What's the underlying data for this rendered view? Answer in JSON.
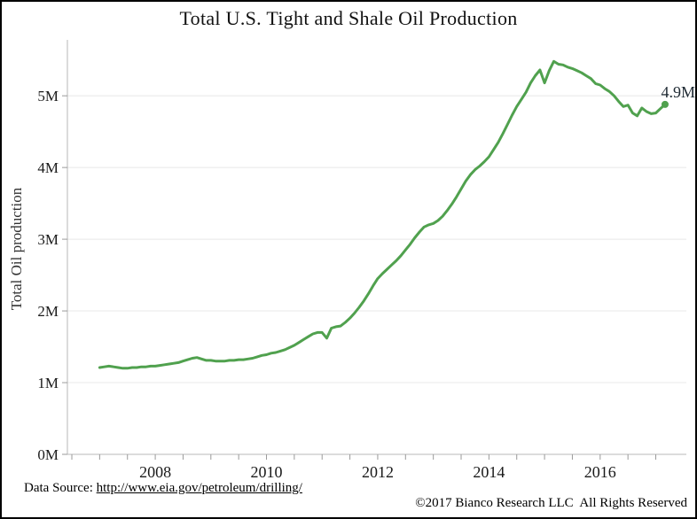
{
  "title": "Total U.S. Tight and Shale Oil Production",
  "chart_data": {
    "type": "line",
    "title": "Total U.S. Tight and Shale Oil Production",
    "xlabel": "",
    "ylabel": "Total Oil production",
    "x_start_year": 2007,
    "x_interval": "monthly",
    "x_end_label": "early 2017",
    "series": [
      {
        "name": "Total U.S. tight and shale oil production",
        "color": "#50a14e",
        "values": [
          1.21,
          1.22,
          1.23,
          1.22,
          1.21,
          1.2,
          1.2,
          1.21,
          1.21,
          1.22,
          1.22,
          1.23,
          1.23,
          1.24,
          1.25,
          1.26,
          1.27,
          1.28,
          1.3,
          1.32,
          1.34,
          1.35,
          1.33,
          1.31,
          1.31,
          1.3,
          1.3,
          1.3,
          1.31,
          1.31,
          1.32,
          1.32,
          1.33,
          1.34,
          1.36,
          1.38,
          1.39,
          1.41,
          1.42,
          1.44,
          1.46,
          1.49,
          1.52,
          1.56,
          1.6,
          1.64,
          1.68,
          1.7,
          1.7,
          1.62,
          1.76,
          1.78,
          1.79,
          1.84,
          1.9,
          1.97,
          2.05,
          2.14,
          2.24,
          2.35,
          2.45,
          2.52,
          2.58,
          2.64,
          2.7,
          2.77,
          2.85,
          2.93,
          3.02,
          3.1,
          3.17,
          3.2,
          3.22,
          3.26,
          3.32,
          3.4,
          3.49,
          3.59,
          3.7,
          3.81,
          3.9,
          3.97,
          4.02,
          4.08,
          4.15,
          4.25,
          4.35,
          4.47,
          4.6,
          4.73,
          4.85,
          4.95,
          5.05,
          5.18,
          5.28,
          5.36,
          5.18,
          5.35,
          5.48,
          5.44,
          5.43,
          5.4,
          5.38,
          5.35,
          5.32,
          5.28,
          5.24,
          5.17,
          5.15,
          5.1,
          5.06,
          5.0,
          4.92,
          4.85,
          4.87,
          4.76,
          4.72,
          4.83,
          4.78,
          4.75,
          4.76,
          4.82,
          4.88
        ]
      }
    ],
    "x_tick_years": [
      2008,
      2010,
      2012,
      2014,
      2016
    ],
    "x_tick_labels": [
      "2008",
      "2010",
      "2012",
      "2014",
      "2016"
    ],
    "x_minor_tick_step_years": 0.5,
    "x_minor_tick_range": [
      2006.5,
      2017.0
    ],
    "y_ticks": [
      {
        "v": 0,
        "label": "0M"
      },
      {
        "v": 1,
        "label": "1M"
      },
      {
        "v": 2,
        "label": "2M"
      },
      {
        "v": 3,
        "label": "3M"
      },
      {
        "v": 4,
        "label": "4M"
      },
      {
        "v": 5,
        "label": "5M"
      }
    ],
    "xlim": [
      2006.42,
      2017.55
    ],
    "ylim": [
      0,
      5.78
    ],
    "grid": "horizontal-only",
    "legend": "none",
    "end_annotation": {
      "text": "4.9M",
      "value": 4.88
    }
  },
  "colors": {
    "line": "#50a14e",
    "grid": "#e8e8e8",
    "axis": "#c8c8c8",
    "tick": "#9a9a9a",
    "tick_label": "#1a1a1a",
    "link": "#2a6cb5",
    "annotation": "#1f2a33"
  },
  "footer": {
    "source_prefix": "Data Source: ",
    "source_link_text": "http://www.eia.gov/petroleum/drilling/",
    "copyright": "©2017 Bianco Research LLC  All Rights Reserved"
  }
}
